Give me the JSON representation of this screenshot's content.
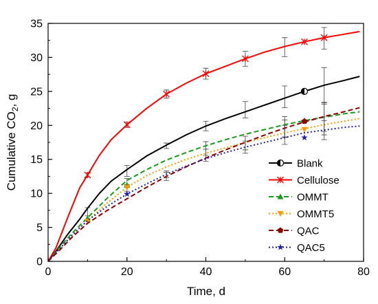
{
  "chart_data": {
    "type": "line",
    "xlabel": "Time, d",
    "ylabel_main": "Cumulative CO",
    "ylabel_sub": "2",
    "ylabel_tail": ", g",
    "xlim": [
      0,
      80
    ],
    "ylim": [
      0,
      35
    ],
    "xticks": [
      0,
      20,
      40,
      60,
      80
    ],
    "yticks": [
      0,
      5,
      10,
      15,
      20,
      25,
      30,
      35
    ],
    "grid": false,
    "legend_position": "lower-right",
    "series": [
      {
        "name": "Blank",
        "color": "#000000",
        "dash": "solid",
        "marker": "half-circle",
        "x": [
          0,
          2,
          5,
          8,
          10,
          13,
          16,
          20,
          25,
          30,
          35,
          40,
          45,
          50,
          55,
          60,
          65,
          70,
          75,
          79
        ],
        "y": [
          0,
          1.5,
          4.0,
          6.2,
          7.8,
          10.0,
          11.8,
          13.5,
          15.5,
          17.1,
          18.6,
          19.9,
          21.0,
          22.0,
          23.0,
          24.0,
          25.0,
          25.9,
          26.6,
          27.2
        ],
        "markers": [
          {
            "x": 65,
            "y": 25.0
          }
        ],
        "errorbars": [
          {
            "x": 10,
            "y": 7.3,
            "e": 0.6
          },
          {
            "x": 20,
            "y": 13.3,
            "e": 0.8
          },
          {
            "x": 30,
            "y": 17.0,
            "e": 0.4
          },
          {
            "x": 40,
            "y": 19.9,
            "e": 0.7
          },
          {
            "x": 50,
            "y": 22.3,
            "e": 1.2
          },
          {
            "x": 60,
            "y": 24.2,
            "e": 1.6
          },
          {
            "x": 70,
            "y": 25.8,
            "e": 2.7
          }
        ]
      },
      {
        "name": "Cellulose",
        "color": "#ff0000",
        "dash": "solid",
        "marker": "asterisk",
        "x": [
          0,
          2,
          5,
          8,
          10,
          13,
          16,
          20,
          25,
          30,
          35,
          40,
          45,
          50,
          55,
          60,
          65,
          70,
          75,
          79
        ],
        "y": [
          0,
          2.0,
          6.5,
          10.8,
          12.7,
          15.6,
          17.9,
          20.1,
          22.5,
          24.6,
          26.2,
          27.6,
          28.7,
          29.8,
          30.8,
          31.6,
          32.3,
          32.9,
          33.4,
          33.8
        ],
        "markers": [
          {
            "x": 10,
            "y": 12.7
          },
          {
            "x": 20,
            "y": 20.1
          },
          {
            "x": 30,
            "y": 24.6
          },
          {
            "x": 40,
            "y": 27.6
          },
          {
            "x": 50,
            "y": 29.8
          },
          {
            "x": 65,
            "y": 32.3
          },
          {
            "x": 70,
            "y": 32.9
          }
        ],
        "errorbars": [
          {
            "x": 10,
            "y": 12.7,
            "e": 0.3
          },
          {
            "x": 20,
            "y": 20.1,
            "e": 0.4
          },
          {
            "x": 30,
            "y": 24.6,
            "e": 0.6
          },
          {
            "x": 40,
            "y": 27.6,
            "e": 0.8
          },
          {
            "x": 50,
            "y": 29.8,
            "e": 1.1
          },
          {
            "x": 60,
            "y": 31.5,
            "e": 1.4
          },
          {
            "x": 70,
            "y": 32.8,
            "e": 1.6
          }
        ]
      },
      {
        "name": "OMMT",
        "color": "#1a9a1a",
        "dash": "dash",
        "marker": "triangle-up",
        "x": [
          0,
          3,
          6,
          10,
          15,
          20,
          25,
          30,
          35,
          40,
          45,
          50,
          55,
          60,
          65,
          70,
          75,
          79
        ],
        "y": [
          0,
          2.1,
          4.1,
          6.4,
          9.3,
          11.9,
          13.5,
          14.9,
          16.0,
          17.0,
          17.9,
          18.7,
          19.4,
          20.1,
          20.7,
          21.2,
          21.7,
          22.0
        ],
        "markers": [
          {
            "x": 10,
            "y": 6.3
          },
          {
            "x": 20,
            "y": 11.2
          },
          {
            "x": 65,
            "y": 20.7
          }
        ],
        "errorbars": [
          {
            "x": 20,
            "y": 11.6,
            "e": 0.6
          },
          {
            "x": 40,
            "y": 16.6,
            "e": 1.0
          },
          {
            "x": 60,
            "y": 19.8,
            "e": 1.5
          },
          {
            "x": 70,
            "y": 21.0,
            "e": 2.4
          }
        ]
      },
      {
        "name": "OMMT5",
        "color": "#ff9900",
        "dash": "dot",
        "marker": "triangle-down",
        "x": [
          0,
          3,
          6,
          10,
          15,
          20,
          25,
          30,
          35,
          40,
          45,
          50,
          55,
          60,
          65,
          70,
          75,
          79
        ],
        "y": [
          0,
          1.9,
          3.8,
          6.0,
          8.6,
          10.9,
          12.6,
          13.9,
          15.0,
          15.9,
          16.7,
          17.5,
          18.2,
          18.9,
          19.5,
          20.1,
          20.6,
          21.0
        ],
        "markers": [
          {
            "x": 10,
            "y": 5.9
          },
          {
            "x": 20,
            "y": 10.9
          },
          {
            "x": 65,
            "y": 19.4
          }
        ],
        "errorbars": [
          {
            "x": 20,
            "y": 10.8,
            "e": 0.5
          },
          {
            "x": 40,
            "y": 15.6,
            "e": 0.9
          },
          {
            "x": 60,
            "y": 18.6,
            "e": 1.4
          }
        ]
      },
      {
        "name": "QAC",
        "color": "#8b0000",
        "dash": "dash",
        "marker": "pentagon",
        "x": [
          0,
          3,
          6,
          10,
          15,
          20,
          25,
          30,
          35,
          40,
          45,
          50,
          55,
          60,
          65,
          70,
          75,
          79
        ],
        "y": [
          0,
          1.7,
          3.5,
          5.6,
          7.5,
          9.2,
          10.9,
          12.5,
          13.9,
          15.2,
          16.4,
          17.5,
          18.6,
          19.6,
          20.5,
          21.3,
          22.0,
          22.6
        ],
        "markers": [
          {
            "x": 65,
            "y": 20.6
          }
        ],
        "errorbars": [
          {
            "x": 30,
            "y": 12.5,
            "e": 0.6
          },
          {
            "x": 50,
            "y": 17.4,
            "e": 1.0
          },
          {
            "x": 60,
            "y": 19.5,
            "e": 1.3
          },
          {
            "x": 70,
            "y": 21.2,
            "e": 2.1
          }
        ]
      },
      {
        "name": "QAC5",
        "color": "#1f1fa8",
        "dash": "dot",
        "marker": "star",
        "x": [
          0,
          3,
          6,
          10,
          15,
          20,
          25,
          30,
          35,
          40,
          45,
          50,
          55,
          60,
          65,
          70,
          75,
          79
        ],
        "y": [
          0,
          1.9,
          3.8,
          6.0,
          8.1,
          9.9,
          11.4,
          12.8,
          14.0,
          15.1,
          16.0,
          16.8,
          17.5,
          18.2,
          18.9,
          19.3,
          19.7,
          19.9
        ],
        "markers": [
          {
            "x": 20,
            "y": 9.9
          },
          {
            "x": 65,
            "y": 18.2
          }
        ],
        "errorbars": [
          {
            "x": 30,
            "y": 12.8,
            "e": 0.5
          },
          {
            "x": 50,
            "y": 16.8,
            "e": 0.9
          },
          {
            "x": 70,
            "y": 19.3,
            "e": 1.4
          }
        ]
      }
    ]
  }
}
